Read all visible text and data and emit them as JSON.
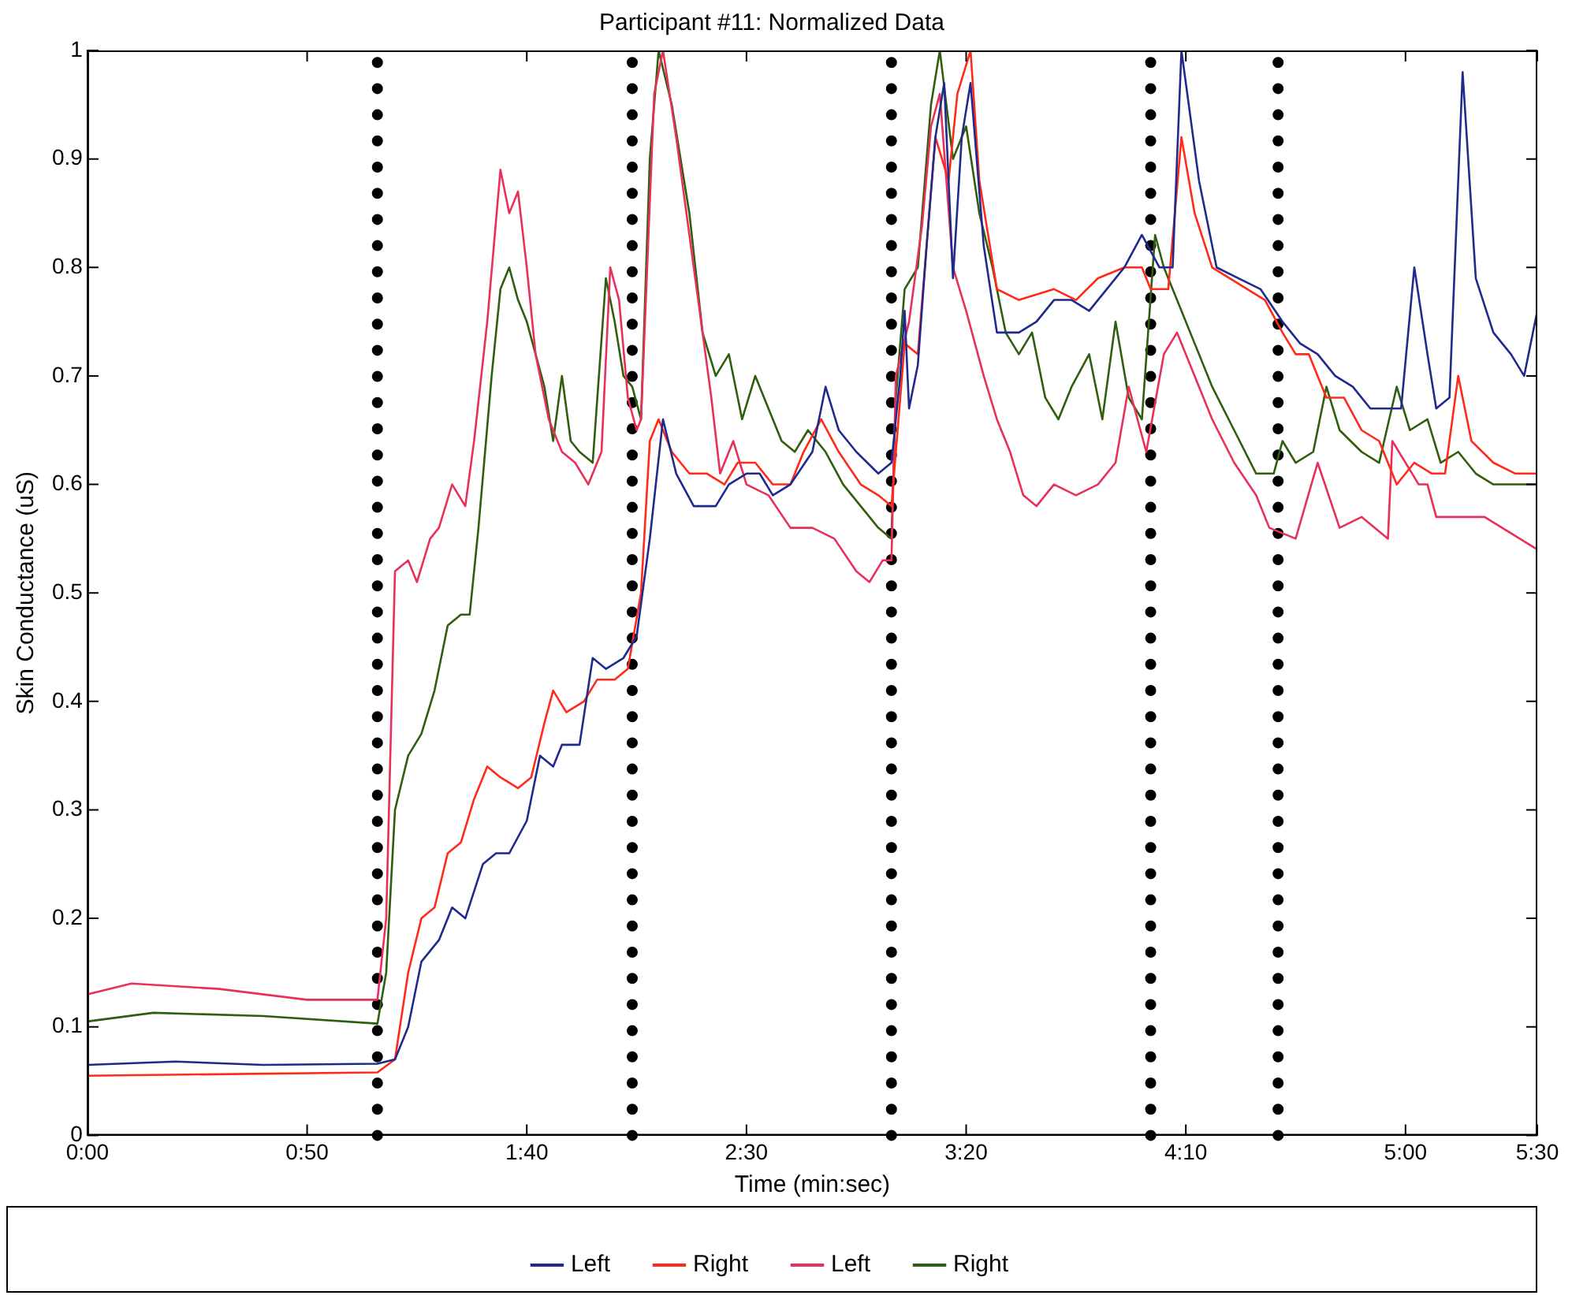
{
  "chart_data": {
    "type": "line",
    "title": "Participant #11: Normalized Data",
    "xlabel": "Time (min:sec)",
    "ylabel": "Skin Conductance (uS)",
    "xlim": [
      0,
      330
    ],
    "xticks": [
      {
        "value": 0,
        "label": "0:00"
      },
      {
        "value": 50,
        "label": "0:50"
      },
      {
        "value": 100,
        "label": "1:40"
      },
      {
        "value": 150,
        "label": "2:30"
      },
      {
        "value": 200,
        "label": "3:20"
      },
      {
        "value": 250,
        "label": "4:10"
      },
      {
        "value": 300,
        "label": "5:00"
      },
      {
        "value": 330,
        "label": "5:30"
      }
    ],
    "ylim": [
      0,
      1
    ],
    "yticks": [
      0,
      0.1,
      0.2,
      0.3,
      0.4,
      0.5,
      0.6,
      0.7,
      0.8,
      0.9,
      1
    ],
    "grid": false,
    "legend": "bottom",
    "marker": "none",
    "line_style": "solid",
    "ref_lines": [
      {
        "axis": "x",
        "value": 66,
        "color": "#000000",
        "line_style": "dotted"
      },
      {
        "axis": "x",
        "value": 124,
        "color": "#000000",
        "line_style": "dotted"
      },
      {
        "axis": "x",
        "value": 183,
        "color": "#000000",
        "line_style": "dotted"
      },
      {
        "axis": "x",
        "value": 242,
        "color": "#000000",
        "line_style": "dotted"
      },
      {
        "axis": "x",
        "value": 271,
        "color": "#000000",
        "line_style": "dotted"
      }
    ],
    "series": [
      {
        "name": "Left",
        "color": "#1f2a8c",
        "x": [
          0,
          20,
          40,
          66,
          70,
          73,
          76,
          78,
          80,
          83,
          86,
          90,
          93,
          96,
          100,
          103,
          106,
          108,
          112,
          115,
          118,
          122,
          125,
          128,
          131,
          134,
          138,
          143,
          146,
          150,
          153,
          156,
          160,
          165,
          168,
          171,
          175,
          180,
          183,
          185,
          186,
          187,
          189,
          191,
          193,
          195,
          197,
          199,
          201,
          204,
          207,
          212,
          216,
          220,
          224,
          228,
          232,
          236,
          240,
          244,
          247,
          249,
          253,
          257,
          262,
          267,
          272,
          276,
          280,
          284,
          288,
          292,
          296,
          299,
          302,
          305,
          307,
          310,
          313,
          316,
          320,
          324,
          327,
          330
        ],
        "values": [
          0.065,
          0.068,
          0.065,
          0.066,
          0.07,
          0.1,
          0.16,
          0.17,
          0.18,
          0.21,
          0.2,
          0.25,
          0.26,
          0.26,
          0.29,
          0.35,
          0.34,
          0.36,
          0.36,
          0.44,
          0.43,
          0.44,
          0.46,
          0.55,
          0.66,
          0.61,
          0.58,
          0.58,
          0.6,
          0.61,
          0.61,
          0.59,
          0.6,
          0.63,
          0.69,
          0.65,
          0.63,
          0.61,
          0.62,
          0.7,
          0.76,
          0.67,
          0.71,
          0.82,
          0.92,
          0.97,
          0.79,
          0.92,
          0.97,
          0.82,
          0.74,
          0.74,
          0.75,
          0.77,
          0.77,
          0.76,
          0.78,
          0.8,
          0.83,
          0.8,
          0.8,
          1.0,
          0.88,
          0.8,
          0.79,
          0.78,
          0.75,
          0.73,
          0.72,
          0.7,
          0.69,
          0.67,
          0.67,
          0.67,
          0.8,
          0.72,
          0.67,
          0.68,
          0.98,
          0.79,
          0.74,
          0.72,
          0.7,
          0.76
        ]
      },
      {
        "name": "Right",
        "color": "#ff2a1a",
        "x": [
          0,
          66,
          70,
          73,
          76,
          79,
          82,
          85,
          88,
          91,
          94,
          98,
          101,
          104,
          106,
          109,
          113,
          116,
          120,
          123,
          126,
          128,
          130,
          133,
          137,
          141,
          145,
          148,
          152,
          156,
          160,
          163,
          167,
          171,
          176,
          180,
          183,
          186,
          189,
          193,
          196,
          198,
          201,
          203,
          207,
          212,
          220,
          225,
          230,
          236,
          240,
          242,
          246,
          249,
          252,
          256,
          260,
          264,
          268,
          272,
          275,
          278,
          282,
          286,
          290,
          294,
          298,
          302,
          306,
          309,
          312,
          315,
          320,
          325,
          330
        ],
        "values": [
          0.055,
          0.058,
          0.07,
          0.15,
          0.2,
          0.21,
          0.26,
          0.27,
          0.31,
          0.34,
          0.33,
          0.32,
          0.33,
          0.38,
          0.41,
          0.39,
          0.4,
          0.42,
          0.42,
          0.43,
          0.5,
          0.64,
          0.66,
          0.63,
          0.61,
          0.61,
          0.6,
          0.62,
          0.62,
          0.6,
          0.6,
          0.63,
          0.66,
          0.63,
          0.6,
          0.59,
          0.58,
          0.73,
          0.72,
          0.92,
          0.88,
          0.96,
          1.0,
          0.88,
          0.78,
          0.77,
          0.78,
          0.77,
          0.79,
          0.8,
          0.8,
          0.78,
          0.78,
          0.92,
          0.85,
          0.8,
          0.79,
          0.78,
          0.77,
          0.74,
          0.72,
          0.72,
          0.68,
          0.68,
          0.65,
          0.64,
          0.6,
          0.62,
          0.61,
          0.61,
          0.7,
          0.64,
          0.62,
          0.61,
          0.61
        ]
      },
      {
        "name": "Left",
        "color": "#e8305a",
        "x": [
          0,
          10,
          30,
          50,
          66,
          68,
          70,
          73,
          75,
          78,
          80,
          83,
          86,
          88,
          91,
          94,
          96,
          98,
          100,
          102,
          105,
          108,
          111,
          114,
          117,
          119,
          121,
          123,
          125,
          126,
          129,
          131,
          134,
          138,
          142,
          144,
          147,
          150,
          155,
          160,
          165,
          170,
          175,
          178,
          181,
          183,
          184,
          187,
          190,
          192,
          194,
          197,
          200,
          204,
          207,
          210,
          213,
          216,
          220,
          225,
          230,
          234,
          237,
          241,
          245,
          248,
          252,
          256,
          261,
          266,
          269,
          275,
          280,
          285,
          290,
          296,
          297,
          303,
          305,
          307,
          312,
          318,
          322,
          330
        ],
        "values": [
          0.13,
          0.14,
          0.135,
          0.125,
          0.125,
          0.2,
          0.52,
          0.53,
          0.51,
          0.55,
          0.56,
          0.6,
          0.58,
          0.64,
          0.75,
          0.89,
          0.85,
          0.87,
          0.8,
          0.72,
          0.66,
          0.63,
          0.62,
          0.6,
          0.63,
          0.8,
          0.77,
          0.68,
          0.65,
          0.66,
          0.96,
          1.0,
          0.92,
          0.8,
          0.68,
          0.61,
          0.64,
          0.6,
          0.59,
          0.56,
          0.56,
          0.55,
          0.52,
          0.51,
          0.53,
          0.53,
          0.7,
          0.75,
          0.84,
          0.93,
          0.96,
          0.8,
          0.76,
          0.7,
          0.66,
          0.63,
          0.59,
          0.58,
          0.6,
          0.59,
          0.6,
          0.62,
          0.69,
          0.63,
          0.72,
          0.74,
          0.7,
          0.66,
          0.62,
          0.59,
          0.56,
          0.55,
          0.62,
          0.56,
          0.57,
          0.55,
          0.64,
          0.6,
          0.6,
          0.57,
          0.57,
          0.57,
          0.56,
          0.54
        ]
      },
      {
        "name": "Right",
        "color": "#2e5e0e",
        "x": [
          0,
          15,
          40,
          66,
          68,
          70,
          73,
          76,
          79,
          82,
          85,
          87,
          89,
          92,
          94,
          96,
          98,
          100,
          102,
          104,
          106,
          108,
          110,
          112,
          115,
          118,
          120,
          122,
          124,
          126,
          128,
          130,
          133,
          137,
          140,
          143,
          146,
          149,
          152,
          155,
          158,
          161,
          164,
          168,
          172,
          176,
          180,
          183,
          184,
          186,
          189,
          192,
          194,
          197,
          200,
          203,
          206,
          209,
          212,
          215,
          218,
          221,
          224,
          228,
          231,
          234,
          237,
          240,
          243,
          245,
          248,
          252,
          256,
          261,
          266,
          270,
          272,
          275,
          279,
          282,
          285,
          290,
          294,
          298,
          301,
          305,
          308,
          312,
          316,
          320,
          325,
          330
        ],
        "values": [
          0.105,
          0.113,
          0.11,
          0.103,
          0.15,
          0.3,
          0.35,
          0.37,
          0.41,
          0.47,
          0.48,
          0.48,
          0.56,
          0.7,
          0.78,
          0.8,
          0.77,
          0.75,
          0.72,
          0.69,
          0.64,
          0.7,
          0.64,
          0.63,
          0.62,
          0.79,
          0.75,
          0.7,
          0.69,
          0.66,
          0.9,
          1.0,
          0.95,
          0.85,
          0.74,
          0.7,
          0.72,
          0.66,
          0.7,
          0.67,
          0.64,
          0.63,
          0.65,
          0.63,
          0.6,
          0.58,
          0.56,
          0.55,
          0.68,
          0.78,
          0.8,
          0.95,
          1.0,
          0.9,
          0.93,
          0.85,
          0.8,
          0.74,
          0.72,
          0.74,
          0.68,
          0.66,
          0.69,
          0.72,
          0.66,
          0.75,
          0.68,
          0.66,
          0.83,
          0.8,
          0.77,
          0.73,
          0.69,
          0.65,
          0.61,
          0.61,
          0.64,
          0.62,
          0.63,
          0.69,
          0.65,
          0.63,
          0.62,
          0.69,
          0.65,
          0.66,
          0.62,
          0.63,
          0.61,
          0.6,
          0.6,
          0.6
        ]
      }
    ]
  }
}
